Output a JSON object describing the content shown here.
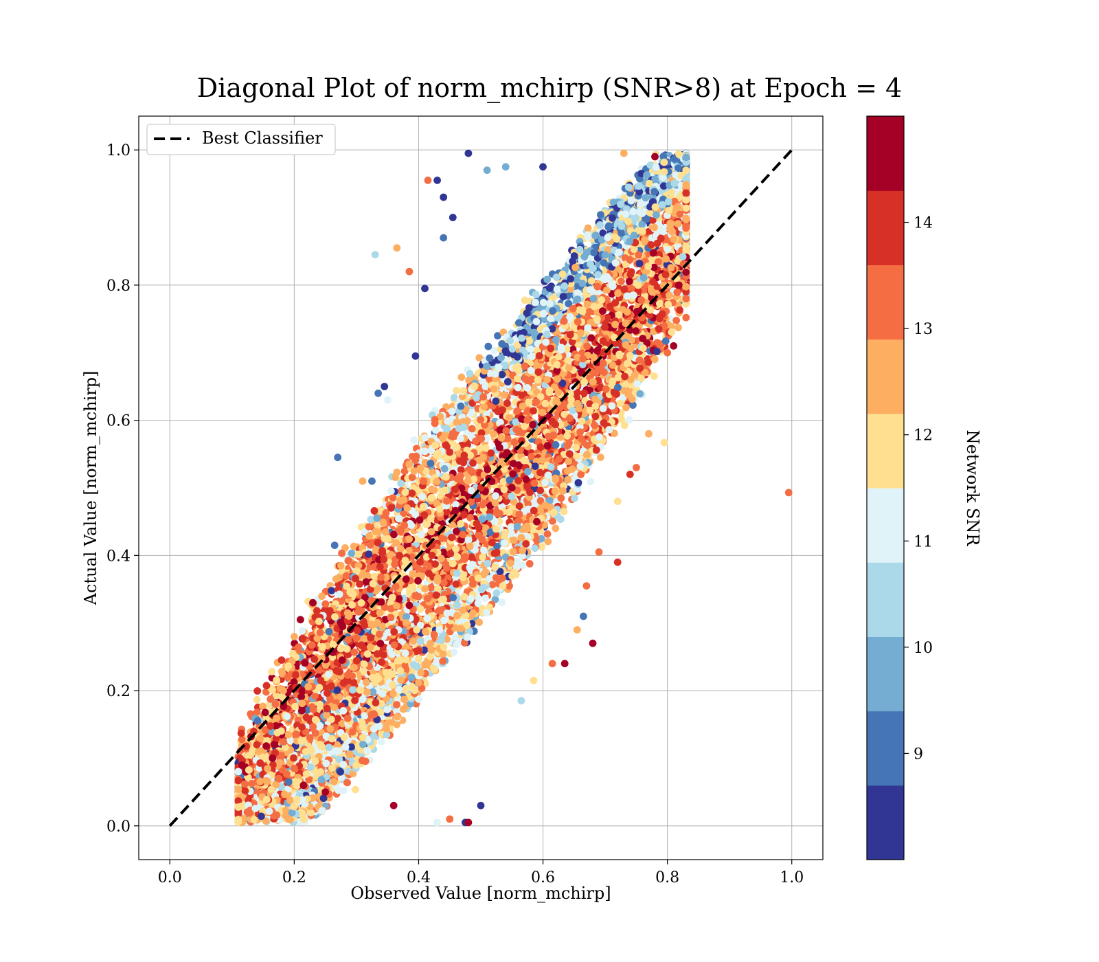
{
  "chart_data": {
    "type": "scatter",
    "title": "Diagonal Plot of norm_mchirp (SNR>8) at Epoch = 4",
    "xlabel": "Observed Value [norm_mchirp]",
    "ylabel": "Actual Value [norm_mchirp]",
    "xlim": [
      -0.05,
      1.05
    ],
    "ylim": [
      -0.05,
      1.05
    ],
    "x_ticks": [
      "0.0",
      "0.2",
      "0.4",
      "0.6",
      "0.8",
      "1.0"
    ],
    "y_ticks": [
      "0.0",
      "0.2",
      "0.4",
      "0.6",
      "0.8",
      "1.0"
    ],
    "grid": true,
    "legend": {
      "position": "upper-left",
      "entries": [
        {
          "label": "Best Classifier",
          "style": "dashed",
          "color": "#000000"
        }
      ]
    },
    "reference_line": {
      "name": "Best Classifier",
      "x": [
        0.0,
        1.0
      ],
      "y": [
        0.0,
        1.0
      ]
    },
    "colorbar": {
      "label": "Network SNR",
      "range": [
        8,
        15
      ],
      "ticks": [
        "9",
        "10",
        "11",
        "12",
        "13",
        "14"
      ],
      "colors": [
        "#313695",
        "#4575b4",
        "#74add1",
        "#abd9e9",
        "#e0f3f8",
        "#fee090",
        "#fdae61",
        "#f46d43",
        "#d73027",
        "#a50026"
      ]
    },
    "points": [
      [
        0.48,
        0.995,
        8.5
      ],
      [
        0.33,
        0.845,
        10.3
      ],
      [
        0.385,
        0.82,
        13.4
      ],
      [
        0.41,
        0.795,
        8.5
      ],
      [
        0.365,
        0.855,
        12.6
      ],
      [
        0.43,
        0.955,
        8.5
      ],
      [
        0.415,
        0.955,
        13.5
      ],
      [
        0.27,
        0.545,
        9.2
      ],
      [
        0.325,
        0.51,
        9.2
      ],
      [
        0.31,
        0.51,
        12.5
      ],
      [
        0.265,
        0.415,
        9.3
      ],
      [
        0.275,
        0.385,
        12.3
      ],
      [
        0.335,
        0.64,
        9.3
      ],
      [
        0.345,
        0.65,
        8.5
      ],
      [
        0.35,
        0.63,
        11.2
      ],
      [
        0.395,
        0.695,
        8.5
      ],
      [
        0.995,
        0.493,
        13.4
      ],
      [
        0.795,
        0.567,
        12.0
      ],
      [
        0.82,
        0.905,
        13.2
      ],
      [
        0.81,
        0.71,
        14.8
      ],
      [
        0.8,
        0.7,
        13.2
      ],
      [
        0.72,
        0.39,
        14.2
      ],
      [
        0.68,
        0.27,
        14.8
      ],
      [
        0.635,
        0.24,
        14.8
      ],
      [
        0.615,
        0.24,
        13.5
      ],
      [
        0.665,
        0.31,
        9.2
      ],
      [
        0.655,
        0.29,
        12.4
      ],
      [
        0.67,
        0.355,
        13.5
      ],
      [
        0.565,
        0.185,
        10.5
      ],
      [
        0.585,
        0.215,
        12.0
      ],
      [
        0.5,
        0.03,
        8.5
      ],
      [
        0.475,
        0.005,
        8.5
      ],
      [
        0.48,
        0.005,
        14.8
      ],
      [
        0.43,
        0.005,
        11.0
      ],
      [
        0.45,
        0.01,
        13.5
      ],
      [
        0.36,
        0.03,
        14.8
      ],
      [
        0.25,
        0.05,
        14.8
      ],
      [
        0.215,
        0.06,
        14.8
      ],
      [
        0.175,
        0.07,
        13.5
      ],
      [
        0.2,
        0.085,
        13.5
      ],
      [
        0.165,
        0.1,
        14.8
      ],
      [
        0.155,
        0.118,
        14.8
      ],
      [
        0.14,
        0.12,
        14.2
      ],
      [
        0.17,
        0.18,
        13.4
      ],
      [
        0.2,
        0.28,
        12.5
      ],
      [
        0.21,
        0.305,
        14.8
      ],
      [
        0.23,
        0.33,
        14.8
      ],
      [
        0.72,
        0.48,
        12.0
      ],
      [
        0.69,
        0.405,
        13.4
      ],
      [
        0.74,
        0.52,
        14.2
      ],
      [
        0.75,
        0.53,
        13.3
      ],
      [
        0.77,
        0.58,
        12.4
      ],
      [
        0.78,
        0.99,
        14.8
      ],
      [
        0.73,
        0.995,
        12.3
      ],
      [
        0.6,
        0.975,
        8.5
      ],
      [
        0.54,
        0.975,
        9.5
      ],
      [
        0.51,
        0.97,
        9.5
      ],
      [
        0.44,
        0.93,
        8.5
      ],
      [
        0.455,
        0.9,
        8.5
      ],
      [
        0.44,
        0.87,
        9.2
      ],
      [
        0.59,
        0.45,
        14.8
      ],
      [
        0.55,
        0.5,
        14.8
      ],
      [
        0.6,
        0.6,
        14.8
      ],
      [
        0.5,
        0.5,
        14.2
      ]
    ]
  }
}
